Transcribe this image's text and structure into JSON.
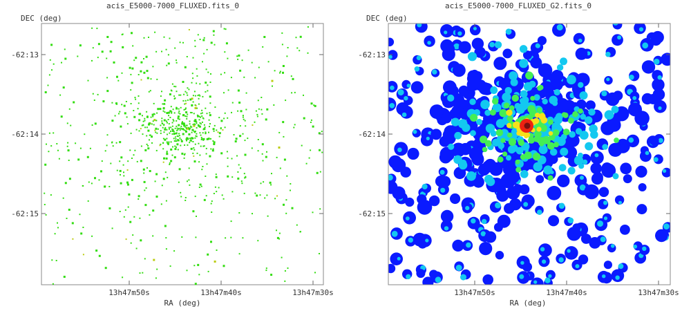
{
  "panels": [
    {
      "title": "acis_E5000-7000_FLUXED.fits_0",
      "ylabel": "DEC (deg)",
      "xlabel": "RA (deg)",
      "y_ticks": [
        "-62:13",
        "-62:14",
        "-62:15"
      ],
      "x_ticks": [
        "13h47m50s",
        "13h47m40s",
        "13h47m30s"
      ],
      "render": "sparse events (green)"
    },
    {
      "title": "acis_E5000-7000_FLUXED_G2.fits_0",
      "ylabel": "DEC (deg)",
      "xlabel": "RA (deg)",
      "y_ticks": [
        "-62:13",
        "-62:14",
        "-62:15"
      ],
      "x_ticks": [
        "13h47m50s",
        "13h47m40s",
        "13h47m30s"
      ],
      "render": "gaussian-smoothed (blue-to-red colormap)"
    }
  ],
  "colors": {
    "event": "#33dd11",
    "event_alt": "#bbcc11",
    "smooth_low": "#0a1aff",
    "smooth_mid": "#13c8f0",
    "smooth_green": "#44ee55",
    "smooth_yellow": "#f6e11a",
    "smooth_high": "#ee2211",
    "smooth_peak": "#7a1010"
  }
}
